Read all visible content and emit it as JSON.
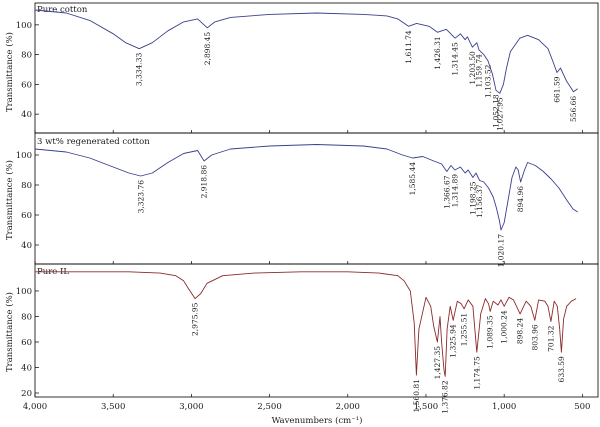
{
  "chart_data": {
    "type": "line",
    "x_axis": {
      "label": "Wavenumbers (cm⁻¹)",
      "range": [
        4000,
        400
      ],
      "reversed": true,
      "ticks": [
        4000,
        3500,
        3000,
        2500,
        2000,
        1500,
        1000,
        500
      ],
      "tick_labels": [
        "4,000",
        "3,500",
        "3,000",
        "2,500",
        "2,000",
        "1,500",
        "1,000",
        "500"
      ]
    },
    "grid": false,
    "panels": [
      {
        "title": "Pure cotton",
        "ylabel": "Transmittance (%)",
        "ylim": [
          30,
          112
        ],
        "yticks": [
          40,
          60,
          80,
          100
        ],
        "color": "#3a3f8f",
        "x": [
          4000,
          3800,
          3650,
          3500,
          3420,
          3334,
          3250,
          3150,
          3050,
          2960,
          2898,
          2850,
          2750,
          2500,
          2200,
          1900,
          1750,
          1680,
          1612,
          1560,
          1480,
          1426,
          1370,
          1314,
          1280,
          1250,
          1235,
          1203,
          1175,
          1160,
          1130,
          1104,
          1075,
          1052,
          1028,
          1005,
          985,
          960,
          900,
          850,
          780,
          720,
          690,
          662,
          640,
          600,
          575,
          557,
          530
        ],
        "y": [
          110,
          108,
          103,
          94,
          88,
          84,
          88,
          96,
          102,
          104,
          98,
          102,
          105,
          107,
          108,
          107,
          106,
          104,
          99,
          101,
          99,
          95,
          97,
          91,
          94,
          90,
          92,
          85,
          88,
          83,
          80,
          76,
          67,
          56,
          54,
          60,
          71,
          82,
          91,
          93,
          90,
          84,
          76,
          68,
          71,
          62,
          58,
          55,
          57
        ],
        "peak_labels": [
          "3,334.33",
          "2,898.45",
          "1,611.74",
          "1,426.31",
          "1,314.45",
          "1,203.50",
          "1,159.74",
          "1,103.52",
          "1,052.18",
          "1,027.95",
          "661.59",
          "556.66"
        ],
        "peak_x": [
          3334.33,
          2898.45,
          1611.74,
          1426.31,
          1314.45,
          1203.5,
          1159.74,
          1103.52,
          1052.18,
          1027.95,
          661.59,
          556.66
        ],
        "peak_y": [
          84,
          98,
          99,
          95,
          91,
          85,
          83,
          76,
          56,
          54,
          68,
          55
        ]
      },
      {
        "title": "3 wt% regenerated cotton",
        "ylabel": "Transmittance (%)",
        "ylim": [
          30,
          112
        ],
        "yticks": [
          40,
          60,
          80,
          100
        ],
        "color": "#3a3f8f",
        "x": [
          4000,
          3800,
          3650,
          3500,
          3400,
          3324,
          3250,
          3150,
          3050,
          2960,
          2919,
          2870,
          2750,
          2500,
          2200,
          1900,
          1750,
          1650,
          1585,
          1520,
          1450,
          1400,
          1367,
          1340,
          1315,
          1280,
          1250,
          1230,
          1200,
          1180,
          1157,
          1130,
          1100,
          1070,
          1050,
          1030,
          1020,
          1000,
          975,
          950,
          925,
          910,
          895,
          870,
          850,
          800,
          750,
          700,
          650,
          600,
          560,
          530
        ],
        "y": [
          104,
          102,
          98,
          92,
          88,
          86,
          88,
          95,
          101,
          103,
          96,
          100,
          104,
          106,
          107,
          106,
          104,
          100,
          98,
          99,
          96,
          94,
          89,
          93,
          90,
          92,
          88,
          90,
          85,
          88,
          83,
          82,
          78,
          72,
          65,
          56,
          50,
          55,
          70,
          85,
          92,
          90,
          82,
          90,
          95,
          93,
          89,
          84,
          78,
          70,
          64,
          62
        ],
        "peak_labels": [
          "3,323.76",
          "2,918.86",
          "1,585.44",
          "1,366.67",
          "1,314.89",
          "1,198.25",
          "1,156.37",
          "1,020.17",
          "894.96"
        ],
        "peak_x": [
          3323.76,
          2918.86,
          1585.44,
          1366.67,
          1314.89,
          1198.25,
          1156.37,
          1020.17,
          894.96
        ],
        "peak_y": [
          86,
          96,
          98,
          89,
          90,
          85,
          83,
          50,
          82
        ]
      },
      {
        "title": "Pure IL",
        "ylabel": "Transmittance (%)",
        "ylim": [
          20,
          118
        ],
        "yticks": [
          20,
          40,
          60,
          80,
          100
        ],
        "color": "#8b2a2a",
        "x": [
          4000,
          3700,
          3400,
          3200,
          3100,
          3050,
          3020,
          2976,
          2940,
          2900,
          2800,
          2600,
          2300,
          2000,
          1800,
          1680,
          1640,
          1600,
          1575,
          1561,
          1545,
          1500,
          1470,
          1450,
          1427,
          1410,
          1400,
          1385,
          1377,
          1365,
          1345,
          1326,
          1300,
          1275,
          1256,
          1230,
          1200,
          1175,
          1150,
          1120,
          1100,
          1089,
          1070,
          1040,
          1020,
          1000,
          970,
          940,
          898,
          860,
          830,
          804,
          780,
          740,
          720,
          701,
          680,
          660,
          645,
          634,
          620,
          600,
          570,
          540
        ],
        "y": [
          115,
          115,
          115,
          114,
          112,
          108,
          102,
          94,
          98,
          106,
          112,
          114,
          115,
          115,
          114,
          112,
          108,
          100,
          75,
          34,
          70,
          95,
          88,
          72,
          60,
          80,
          60,
          38,
          33,
          70,
          88,
          77,
          92,
          90,
          86,
          93,
          88,
          52,
          82,
          94,
          90,
          84,
          92,
          89,
          93,
          88,
          95,
          93,
          82,
          92,
          88,
          77,
          93,
          92,
          88,
          76,
          92,
          88,
          70,
          52,
          78,
          88,
          92,
          94
        ],
        "peak_labels": [
          "2,975.95",
          "1,560.81",
          "1,427.35",
          "1,376.82",
          "1,325.94",
          "1,255.51",
          "1,174.75",
          "1,089.35",
          "1,000.24",
          "898.24",
          "803.96",
          "701.32",
          "633.59"
        ],
        "peak_x": [
          2975.95,
          1560.81,
          1427.35,
          1376.82,
          1325.94,
          1255.51,
          1174.75,
          1089.35,
          1000.24,
          898.24,
          803.96,
          701.32,
          633.59
        ],
        "peak_y": [
          94,
          34,
          60,
          33,
          77,
          86,
          52,
          84,
          88,
          82,
          77,
          76,
          52
        ]
      }
    ]
  }
}
